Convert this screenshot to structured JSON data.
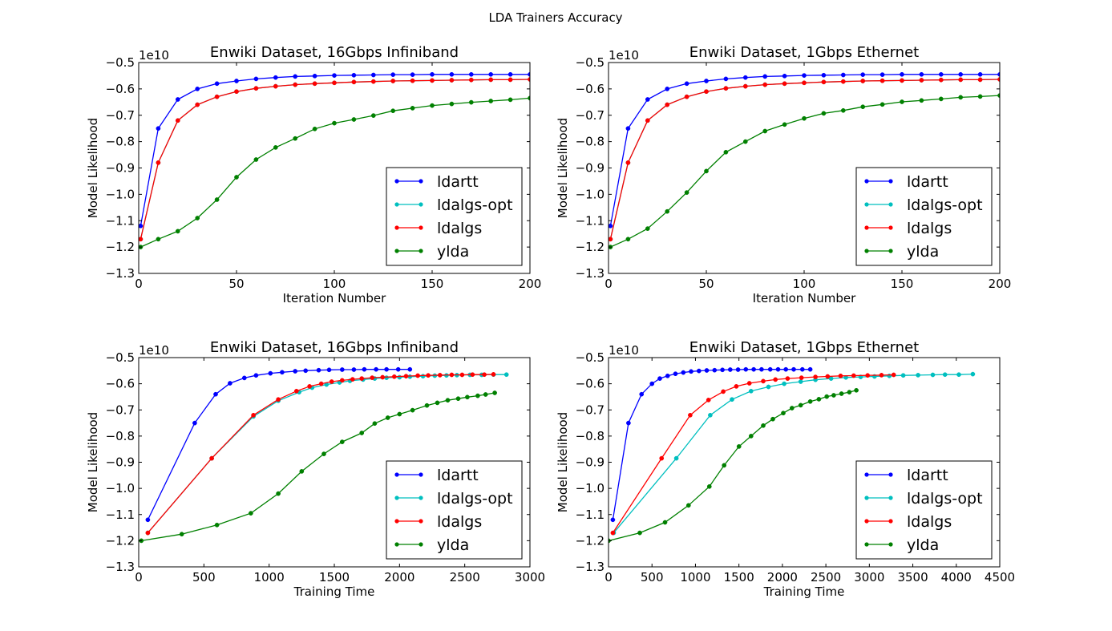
{
  "figure": {
    "title": "LDA Trainers Accuracy"
  },
  "legend_labels": [
    "ldartt",
    "ldalgs-opt",
    "ldalgs",
    "ylda"
  ],
  "colors": {
    "ldartt": "#0000ff",
    "ldalgs-opt": "#00bfbf",
    "ldalgs": "#ff0000",
    "ylda": "#008000"
  },
  "chart_data": [
    {
      "type": "line",
      "title": "Enwiki Dataset, 16Gbps Infiniband",
      "xlabel": "Iteration Number",
      "ylabel": "Model Likelihood",
      "offset_text": "1e10",
      "xlim": [
        0,
        200
      ],
      "ylim": [
        -1.3,
        -0.5
      ],
      "xticks": [
        0,
        50,
        100,
        150,
        200
      ],
      "yticks": [
        -1.3,
        -1.2,
        -1.1,
        -1.0,
        -0.9,
        -0.8,
        -0.7,
        -0.6,
        -0.5
      ],
      "xtick_labels": [
        "0",
        "50",
        "100",
        "150",
        "200"
      ],
      "ytick_labels": [
        "−1.3",
        "−1.2",
        "−1.1",
        "−1.0",
        "−0.9",
        "−0.8",
        "−0.7",
        "−0.6",
        "−0.5"
      ],
      "legend": "lower-right",
      "series": [
        {
          "name": "ldartt",
          "x": [
            1,
            10,
            20,
            30,
            40,
            50,
            60,
            70,
            80,
            90,
            100,
            110,
            120,
            130,
            140,
            150,
            160,
            170,
            180,
            190,
            200
          ],
          "y": [
            -1.12,
            -0.75,
            -0.64,
            -0.6,
            -0.58,
            -0.57,
            -0.562,
            -0.557,
            -0.553,
            -0.551,
            -0.549,
            -0.548,
            -0.547,
            -0.546,
            -0.546,
            -0.545,
            -0.545,
            -0.545,
            -0.545,
            -0.545,
            -0.545
          ]
        },
        {
          "name": "ldalgs-opt",
          "x": [
            1,
            10,
            20,
            30,
            40,
            50,
            60,
            70,
            80,
            90,
            100,
            110,
            120,
            130,
            140,
            150,
            160,
            170,
            180,
            190,
            200
          ],
          "y": [
            -1.17,
            -0.88,
            -0.72,
            -0.66,
            -0.63,
            -0.61,
            -0.598,
            -0.59,
            -0.584,
            -0.58,
            -0.577,
            -0.574,
            -0.572,
            -0.57,
            -0.569,
            -0.568,
            -0.567,
            -0.566,
            -0.565,
            -0.565,
            -0.564
          ]
        },
        {
          "name": "ldalgs",
          "x": [
            1,
            10,
            20,
            30,
            40,
            50,
            60,
            70,
            80,
            90,
            100,
            110,
            120,
            130,
            140,
            150,
            160,
            170,
            180,
            190,
            200
          ],
          "y": [
            -1.17,
            -0.88,
            -0.72,
            -0.66,
            -0.63,
            -0.61,
            -0.598,
            -0.59,
            -0.584,
            -0.58,
            -0.577,
            -0.574,
            -0.572,
            -0.57,
            -0.569,
            -0.568,
            -0.567,
            -0.566,
            -0.565,
            -0.565,
            -0.564
          ]
        },
        {
          "name": "ylda",
          "x": [
            1,
            10,
            20,
            30,
            40,
            50,
            60,
            70,
            80,
            90,
            100,
            110,
            120,
            130,
            140,
            150,
            160,
            170,
            180,
            190,
            200
          ],
          "y": [
            -1.2,
            -1.17,
            -1.14,
            -1.09,
            -1.02,
            -0.935,
            -0.868,
            -0.822,
            -0.788,
            -0.752,
            -0.73,
            -0.716,
            -0.701,
            -0.683,
            -0.673,
            -0.663,
            -0.657,
            -0.651,
            -0.646,
            -0.641,
            -0.635
          ]
        }
      ]
    },
    {
      "type": "line",
      "title": "Enwiki Dataset, 1Gbps Ethernet",
      "xlabel": "Iteration Number",
      "ylabel": "Model Likelihood",
      "offset_text": "1e10",
      "xlim": [
        0,
        200
      ],
      "ylim": [
        -1.3,
        -0.5
      ],
      "xticks": [
        0,
        50,
        100,
        150,
        200
      ],
      "yticks": [
        -1.3,
        -1.2,
        -1.1,
        -1.0,
        -0.9,
        -0.8,
        -0.7,
        -0.6,
        -0.5
      ],
      "xtick_labels": [
        "0",
        "50",
        "100",
        "150",
        "200"
      ],
      "ytick_labels": [
        "−1.3",
        "−1.2",
        "−1.1",
        "−1.0",
        "−0.9",
        "−0.8",
        "−0.7",
        "−0.6",
        "−0.5"
      ],
      "legend": "lower-right",
      "series": [
        {
          "name": "ldartt",
          "x": [
            1,
            10,
            20,
            30,
            40,
            50,
            60,
            70,
            80,
            90,
            100,
            110,
            120,
            130,
            140,
            150,
            160,
            170,
            180,
            190,
            200
          ],
          "y": [
            -1.12,
            -0.75,
            -0.64,
            -0.6,
            -0.58,
            -0.57,
            -0.562,
            -0.557,
            -0.553,
            -0.551,
            -0.549,
            -0.548,
            -0.547,
            -0.546,
            -0.546,
            -0.545,
            -0.545,
            -0.545,
            -0.545,
            -0.545,
            -0.545
          ]
        },
        {
          "name": "ldalgs-opt",
          "x": [
            1,
            10,
            20,
            30,
            40,
            50,
            60,
            70,
            80,
            90,
            100,
            110,
            120,
            130,
            140,
            150,
            160,
            170,
            180,
            190,
            200
          ],
          "y": [
            -1.17,
            -0.88,
            -0.72,
            -0.66,
            -0.63,
            -0.61,
            -0.598,
            -0.59,
            -0.584,
            -0.58,
            -0.577,
            -0.574,
            -0.572,
            -0.57,
            -0.569,
            -0.568,
            -0.567,
            -0.566,
            -0.565,
            -0.565,
            -0.564
          ]
        },
        {
          "name": "ldalgs",
          "x": [
            1,
            10,
            20,
            30,
            40,
            50,
            60,
            70,
            80,
            90,
            100,
            110,
            120,
            130,
            140,
            150,
            160,
            170,
            180,
            190,
            200
          ],
          "y": [
            -1.17,
            -0.88,
            -0.72,
            -0.66,
            -0.63,
            -0.61,
            -0.598,
            -0.59,
            -0.584,
            -0.58,
            -0.577,
            -0.574,
            -0.572,
            -0.57,
            -0.569,
            -0.568,
            -0.567,
            -0.566,
            -0.565,
            -0.565,
            -0.564
          ]
        },
        {
          "name": "ylda",
          "x": [
            1,
            10,
            20,
            30,
            40,
            50,
            60,
            70,
            80,
            90,
            100,
            110,
            120,
            130,
            140,
            150,
            160,
            170,
            180,
            190,
            200
          ],
          "y": [
            -1.2,
            -1.17,
            -1.13,
            -1.065,
            -0.993,
            -0.912,
            -0.84,
            -0.8,
            -0.76,
            -0.735,
            -0.712,
            -0.693,
            -0.682,
            -0.668,
            -0.659,
            -0.649,
            -0.644,
            -0.638,
            -0.632,
            -0.629,
            -0.625
          ]
        }
      ]
    },
    {
      "type": "line",
      "title": "Enwiki Dataset, 16Gbps Infiniband",
      "xlabel": "Training Time",
      "ylabel": "Model Likelihood",
      "offset_text": "1e10",
      "xlim": [
        0,
        3000
      ],
      "ylim": [
        -1.3,
        -0.5
      ],
      "xticks": [
        0,
        500,
        1000,
        1500,
        2000,
        2500,
        3000
      ],
      "yticks": [
        -1.3,
        -1.2,
        -1.1,
        -1.0,
        -0.9,
        -0.8,
        -0.7,
        -0.6,
        -0.5
      ],
      "xtick_labels": [
        "0",
        "500",
        "1000",
        "1500",
        "2000",
        "2500",
        "3000"
      ],
      "ytick_labels": [
        "−1.3",
        "−1.2",
        "−1.1",
        "−1.0",
        "−0.9",
        "−0.8",
        "−0.7",
        "−0.6",
        "−0.5"
      ],
      "legend": "lower-right",
      "series": [
        {
          "name": "ldartt",
          "x": [
            70,
            430,
            590,
            700,
            810,
            900,
            1010,
            1100,
            1200,
            1280,
            1380,
            1460,
            1560,
            1650,
            1730,
            1820,
            1900,
            1990,
            2080
          ],
          "y": [
            -1.12,
            -0.75,
            -0.64,
            -0.598,
            -0.578,
            -0.568,
            -0.56,
            -0.556,
            -0.552,
            -0.55,
            -0.548,
            -0.547,
            -0.546,
            -0.546,
            -0.545,
            -0.545,
            -0.545,
            -0.545,
            -0.545
          ]
        },
        {
          "name": "ldalgs-opt",
          "x": [
            70,
            560,
            880,
            1070,
            1230,
            1330,
            1440,
            1540,
            1620,
            1720,
            1810,
            1900,
            2000,
            2080,
            2180,
            2270,
            2360,
            2440,
            2540,
            2630,
            2720,
            2820
          ],
          "y": [
            -1.17,
            -0.885,
            -0.725,
            -0.665,
            -0.632,
            -0.615,
            -0.603,
            -0.595,
            -0.589,
            -0.584,
            -0.58,
            -0.577,
            -0.575,
            -0.573,
            -0.571,
            -0.569,
            -0.568,
            -0.567,
            -0.566,
            -0.566,
            -0.565,
            -0.565
          ]
        },
        {
          "name": "ldalgs",
          "x": [
            70,
            560,
            880,
            1070,
            1210,
            1310,
            1400,
            1480,
            1560,
            1640,
            1710,
            1790,
            1870,
            1960,
            2050,
            2140,
            2220,
            2310,
            2400,
            2480,
            2560,
            2650,
            2720
          ],
          "y": [
            -1.17,
            -0.885,
            -0.72,
            -0.66,
            -0.628,
            -0.61,
            -0.6,
            -0.592,
            -0.587,
            -0.583,
            -0.58,
            -0.577,
            -0.575,
            -0.573,
            -0.571,
            -0.569,
            -0.568,
            -0.567,
            -0.566,
            -0.566,
            -0.565,
            -0.565,
            -0.564
          ]
        },
        {
          "name": "ylda",
          "x": [
            20,
            330,
            600,
            860,
            1070,
            1250,
            1420,
            1560,
            1710,
            1810,
            1910,
            2000,
            2100,
            2210,
            2290,
            2370,
            2450,
            2520,
            2600,
            2660,
            2730
          ],
          "y": [
            -1.2,
            -1.175,
            -1.14,
            -1.095,
            -1.02,
            -0.935,
            -0.868,
            -0.822,
            -0.788,
            -0.752,
            -0.73,
            -0.716,
            -0.701,
            -0.683,
            -0.673,
            -0.663,
            -0.657,
            -0.651,
            -0.646,
            -0.641,
            -0.635
          ]
        }
      ]
    },
    {
      "type": "line",
      "title": "Enwiki Dataset, 1Gbps Ethernet",
      "xlabel": "Training Time",
      "ylabel": "Model Likelihood",
      "offset_text": "1e10",
      "xlim": [
        0,
        4500
      ],
      "ylim": [
        -1.3,
        -0.5
      ],
      "xticks": [
        0,
        500,
        1000,
        1500,
        2000,
        2500,
        3000,
        3500,
        4000,
        4500
      ],
      "yticks": [
        -1.3,
        -1.2,
        -1.1,
        -1.0,
        -0.9,
        -0.8,
        -0.7,
        -0.6,
        -0.5
      ],
      "xtick_labels": [
        "0",
        "500",
        "1000",
        "1500",
        "2000",
        "2500",
        "3000",
        "3500",
        "4000",
        "4500"
      ],
      "ytick_labels": [
        "−1.3",
        "−1.2",
        "−1.1",
        "−1.0",
        "−0.9",
        "−0.8",
        "−0.7",
        "−0.6",
        "−0.5"
      ],
      "legend": "lower-right",
      "series": [
        {
          "name": "ldartt",
          "x": [
            50,
            230,
            380,
            500,
            590,
            680,
            770,
            860,
            950,
            1040,
            1130,
            1220,
            1310,
            1400,
            1490,
            1580,
            1670,
            1760,
            1860,
            1950,
            2040,
            2130,
            2230,
            2320
          ],
          "y": [
            -1.12,
            -0.75,
            -0.64,
            -0.6,
            -0.58,
            -0.57,
            -0.562,
            -0.557,
            -0.553,
            -0.551,
            -0.549,
            -0.548,
            -0.547,
            -0.546,
            -0.546,
            -0.545,
            -0.545,
            -0.545,
            -0.545,
            -0.545,
            -0.545,
            -0.545,
            -0.545,
            -0.545
          ]
        },
        {
          "name": "ldalgs-opt",
          "x": [
            60,
            780,
            1170,
            1420,
            1640,
            1840,
            2020,
            2210,
            2380,
            2560,
            2730,
            2900,
            3060,
            3230,
            3390,
            3560,
            3730,
            3870,
            4030,
            4190
          ],
          "y": [
            -1.17,
            -0.885,
            -0.72,
            -0.66,
            -0.628,
            -0.612,
            -0.6,
            -0.592,
            -0.585,
            -0.58,
            -0.576,
            -0.574,
            -0.572,
            -0.57,
            -0.568,
            -0.567,
            -0.566,
            -0.565,
            -0.565,
            -0.563
          ]
        },
        {
          "name": "ldalgs",
          "x": [
            50,
            610,
            940,
            1150,
            1320,
            1470,
            1620,
            1780,
            1920,
            2060,
            2220,
            2380,
            2520,
            2670,
            2820,
            2980,
            3140,
            3280
          ],
          "y": [
            -1.17,
            -0.885,
            -0.72,
            -0.662,
            -0.63,
            -0.61,
            -0.598,
            -0.59,
            -0.584,
            -0.58,
            -0.577,
            -0.574,
            -0.572,
            -0.57,
            -0.569,
            -0.568,
            -0.567,
            -0.566
          ]
        },
        {
          "name": "ylda",
          "x": [
            0,
            360,
            650,
            920,
            1160,
            1330,
            1500,
            1640,
            1780,
            1890,
            2010,
            2110,
            2210,
            2320,
            2420,
            2510,
            2590,
            2680,
            2770,
            2850
          ],
          "y": [
            -1.2,
            -1.17,
            -1.13,
            -1.065,
            -0.993,
            -0.912,
            -0.84,
            -0.8,
            -0.76,
            -0.735,
            -0.712,
            -0.693,
            -0.682,
            -0.668,
            -0.659,
            -0.649,
            -0.644,
            -0.638,
            -0.632,
            -0.625
          ]
        }
      ]
    }
  ]
}
